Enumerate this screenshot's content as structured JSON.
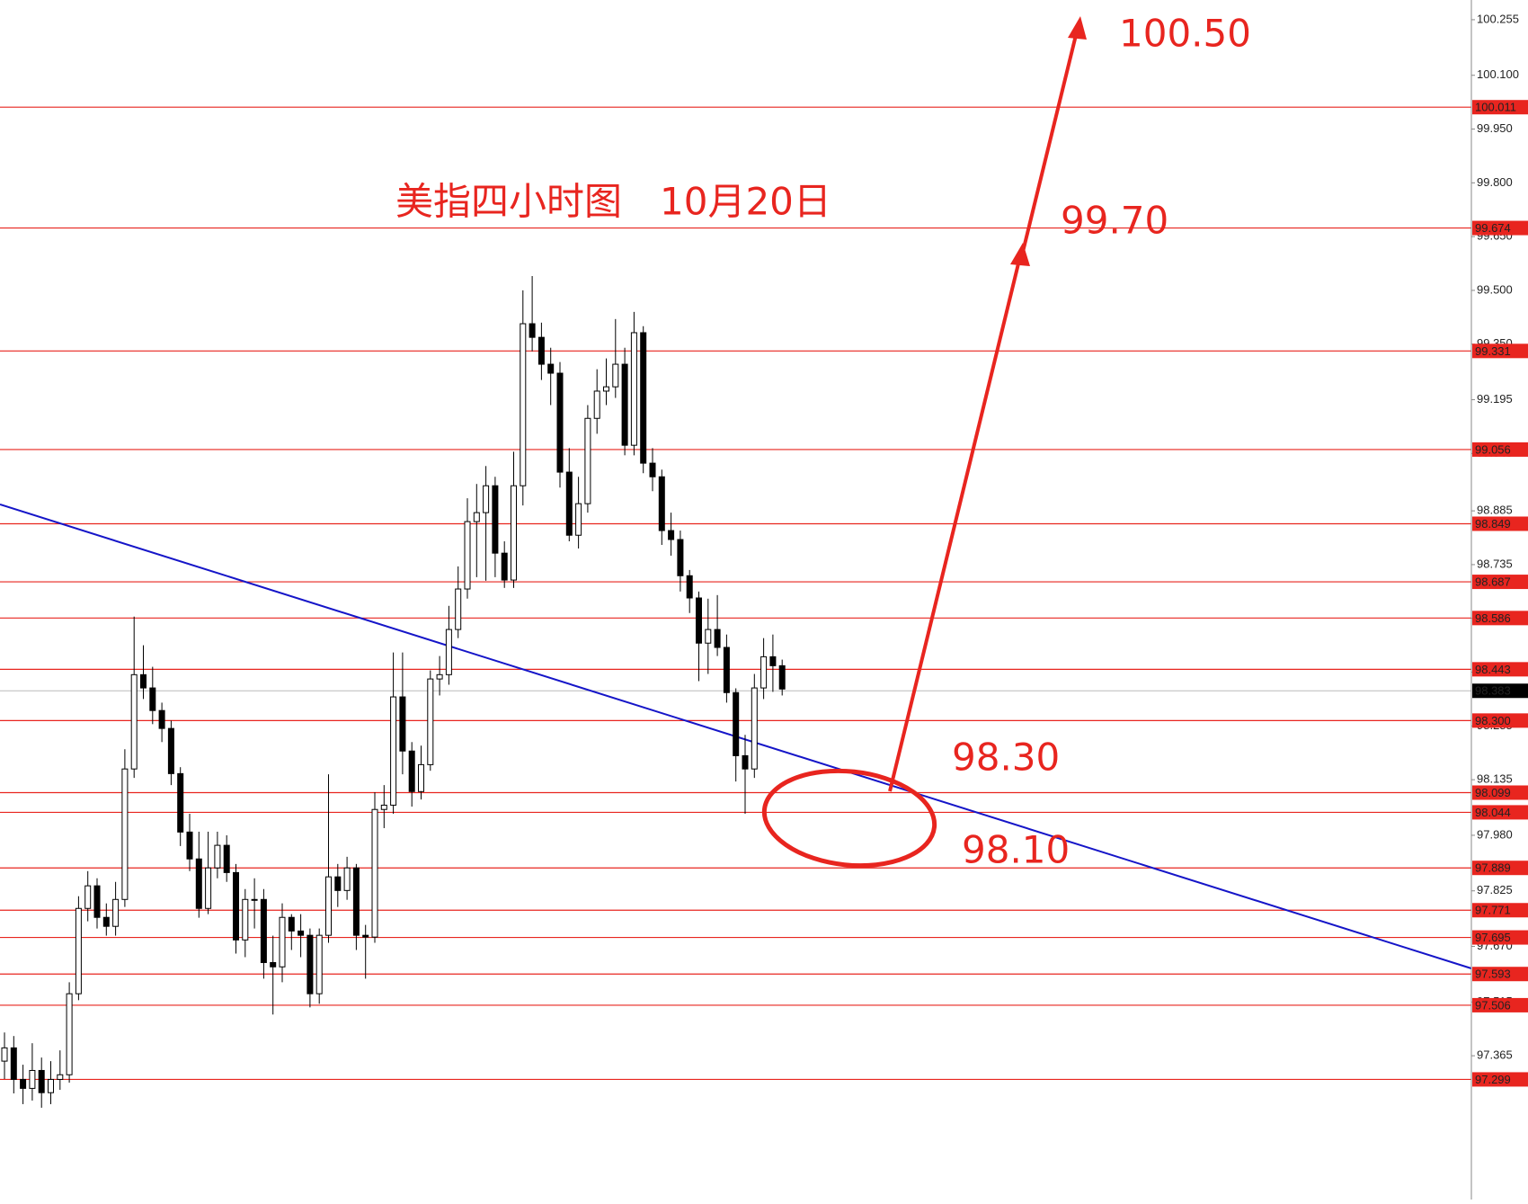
{
  "chart_data": {
    "type": "candlestick",
    "title": "美指四小时图　10月20日",
    "annotations": [
      "100.50",
      "99.70",
      "98.30",
      "98.10"
    ],
    "open": [
      97.35,
      97.387,
      97.299,
      97.274,
      97.324,
      97.262,
      97.299,
      97.312,
      97.538,
      97.776,
      97.839,
      97.751,
      97.726,
      97.801,
      98.165,
      98.428,
      98.391,
      98.328,
      98.278,
      98.152,
      97.989,
      97.914,
      97.776,
      97.889,
      97.952,
      97.876,
      97.688,
      97.801,
      97.801,
      97.625,
      97.613,
      97.751,
      97.713,
      97.701,
      97.538,
      97.701,
      97.864,
      97.826,
      97.889,
      97.701,
      97.696,
      98.052,
      98.064,
      98.366,
      98.215,
      98.102,
      98.177,
      98.416,
      98.428,
      98.554,
      98.667,
      98.855,
      98.88,
      98.955,
      98.767,
      98.692,
      98.955,
      99.407,
      99.369,
      99.294,
      99.269,
      98.993,
      98.817,
      98.905,
      99.143,
      99.219,
      99.231,
      99.294,
      99.068,
      99.382,
      99.018,
      98.98,
      98.83,
      98.805,
      98.704,
      98.642,
      98.516,
      98.554,
      98.504,
      98.378,
      98.202,
      98.165,
      98.391,
      98.478,
      98.453
    ],
    "high": [
      97.43,
      97.42,
      97.34,
      97.4,
      97.36,
      97.35,
      97.38,
      97.57,
      97.81,
      97.88,
      97.86,
      97.79,
      97.85,
      98.22,
      98.59,
      98.51,
      98.45,
      98.35,
      98.3,
      98.17,
      98.04,
      97.99,
      97.99,
      97.99,
      97.98,
      97.9,
      97.83,
      97.86,
      97.83,
      97.7,
      97.79,
      97.76,
      97.76,
      97.72,
      97.72,
      98.15,
      97.9,
      97.92,
      97.9,
      97.73,
      98.1,
      98.12,
      98.49,
      98.49,
      98.24,
      98.23,
      98.44,
      98.48,
      98.62,
      98.73,
      98.92,
      98.96,
      99.01,
      98.98,
      98.8,
      99.05,
      99.5,
      99.54,
      99.41,
      99.34,
      99.3,
      99.06,
      98.98,
      99.18,
      99.28,
      99.31,
      99.42,
      99.34,
      99.44,
      99.4,
      99.06,
      99.0,
      98.88,
      98.83,
      98.72,
      98.66,
      98.64,
      98.65,
      98.54,
      98.39,
      98.26,
      98.43,
      98.53,
      98.54,
      98.47
    ],
    "low": [
      97.3,
      97.26,
      97.23,
      97.24,
      97.22,
      97.23,
      97.27,
      97.29,
      97.52,
      97.74,
      97.72,
      97.7,
      97.7,
      97.78,
      98.14,
      98.36,
      98.29,
      98.24,
      98.12,
      97.95,
      97.88,
      97.75,
      97.76,
      97.86,
      97.85,
      97.65,
      97.64,
      97.72,
      97.58,
      97.48,
      97.57,
      97.66,
      97.64,
      97.5,
      97.51,
      97.68,
      97.78,
      97.8,
      97.66,
      97.58,
      97.68,
      98.0,
      98.04,
      98.15,
      98.06,
      98.08,
      98.16,
      98.37,
      98.4,
      98.53,
      98.64,
      98.7,
      98.69,
      98.7,
      98.67,
      98.67,
      98.9,
      99.33,
      99.25,
      99.18,
      98.95,
      98.8,
      98.78,
      98.88,
      99.1,
      99.18,
      99.2,
      99.04,
      99.04,
      98.99,
      98.94,
      98.79,
      98.76,
      98.66,
      98.6,
      98.41,
      98.43,
      98.48,
      98.35,
      98.13,
      98.04,
      98.14,
      98.36,
      98.38,
      98.37
    ],
    "close": [
      97.387,
      97.299,
      97.274,
      97.324,
      97.262,
      97.299,
      97.312,
      97.538,
      97.776,
      97.839,
      97.751,
      97.726,
      97.801,
      98.165,
      98.428,
      98.391,
      98.328,
      98.278,
      98.152,
      97.989,
      97.914,
      97.776,
      97.889,
      97.952,
      97.876,
      97.688,
      97.801,
      97.801,
      97.625,
      97.613,
      97.751,
      97.713,
      97.701,
      97.538,
      97.701,
      97.864,
      97.826,
      97.889,
      97.701,
      97.696,
      98.052,
      98.064,
      98.366,
      98.215,
      98.102,
      98.177,
      98.416,
      98.428,
      98.554,
      98.667,
      98.855,
      98.88,
      98.955,
      98.767,
      98.692,
      98.955,
      99.407,
      99.369,
      99.294,
      99.269,
      98.993,
      98.817,
      98.905,
      99.143,
      99.219,
      99.231,
      99.294,
      99.068,
      99.382,
      99.018,
      98.98,
      98.83,
      98.805,
      98.704,
      98.642,
      98.516,
      98.554,
      98.504,
      98.378,
      98.202,
      98.165,
      98.391,
      98.478,
      98.453,
      98.388
    ],
    "ylim": [
      96.964,
      100.31
    ],
    "yticks": [
      100.255,
      {
        "value": 100.1,
        "label": "100.100"
      },
      {
        "value": 99.95,
        "label": "99.950"
      },
      {
        "value": 99.8,
        "label": "99.800"
      },
      {
        "value": 99.65,
        "label": "99.650"
      },
      {
        "value": 99.5,
        "label": "99.500"
      },
      {
        "value": 99.35,
        "label": "99.350"
      },
      99.195,
      99.045,
      98.885,
      98.735,
      98.585,
      98.435,
      98.285,
      98.135,
      {
        "value": 97.98,
        "label": "97.980"
      },
      97.825,
      {
        "value": 97.67,
        "label": "97.670"
      },
      97.515,
      97.365
    ],
    "levels": [
      100.011,
      99.674,
      99.331,
      99.056,
      98.849,
      98.687,
      98.586,
      98.443,
      {
        "value": 98.3,
        "label": "98.300"
      },
      98.099,
      98.044,
      97.889,
      97.771,
      97.695,
      97.593,
      97.506,
      97.299
    ],
    "level_color": "#e8251f",
    "current_price": 98.383,
    "up_color": "#ffffff",
    "down_color": "#000000"
  }
}
